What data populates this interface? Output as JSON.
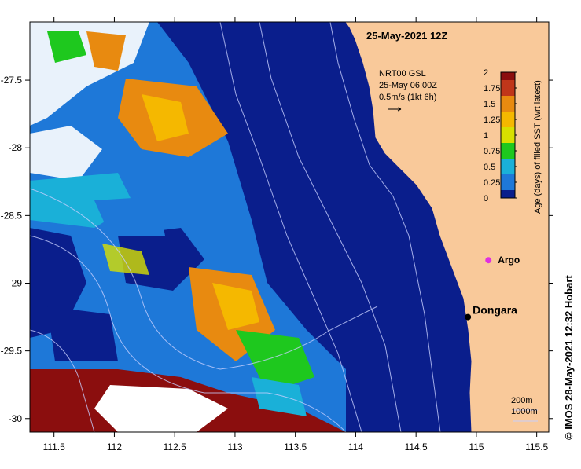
{
  "map": {
    "title": "25-May-2021 12Z",
    "copyright": "© IMOS 28-May-2021 12:32 Hobart",
    "legend": {
      "product": "NRT00 GSL",
      "time": "25-May 06:00Z",
      "scale": "0.5m/s (1kt 6h)"
    },
    "colorbar": {
      "label": "Age (days) of filled SST (wrt latest)",
      "ticks": [
        "2",
        "1.75",
        "1.5",
        "1.25",
        "1",
        "0.75",
        "0.5",
        "0.25",
        "0"
      ],
      "colors": [
        "#8b0e0e",
        "#c0361a",
        "#e88a10",
        "#f5b800",
        "#d8e000",
        "#1ec81e",
        "#1ab0d8",
        "#1e78d8",
        "#0a1e8c"
      ]
    },
    "lon_ticks": [
      "111.5",
      "112",
      "112.5",
      "113",
      "113.5",
      "114",
      "114.5",
      "115",
      "115.5"
    ],
    "lat_ticks": [
      "-27.5",
      "-28",
      "-28.5",
      "-29",
      "-29.5",
      "-30"
    ],
    "places": [
      {
        "name": "Dongara",
        "lon": 114.93,
        "lat": -29.25
      },
      {
        "name": "Argo",
        "lon": 115.1,
        "lat": -28.83
      }
    ],
    "depth_legend": [
      "200m",
      "1000m"
    ],
    "colors": {
      "ocean": "#0a1e8c",
      "land": "#f9c99a",
      "argo": "#e030e0"
    }
  }
}
